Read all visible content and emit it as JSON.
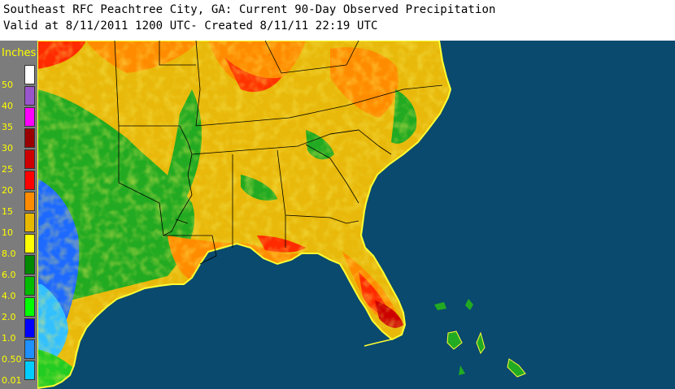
{
  "header": {
    "title": "Southeast RFC Peachtree City, GA: Current 90-Day Observed Precipitation",
    "subtitle": "Valid at 8/11/2011 1200 UTC- Created 8/11/11 22:19 UTC"
  },
  "legend": {
    "unit_label": "Inches",
    "entries": [
      {
        "label": "50",
        "color": "#ffffff"
      },
      {
        "label": "40",
        "color": "#9955cc"
      },
      {
        "label": "35",
        "color": "#ff00ff"
      },
      {
        "label": "30",
        "color": "#990000"
      },
      {
        "label": "25",
        "color": "#cc0000"
      },
      {
        "label": "20",
        "color": "#ff0000"
      },
      {
        "label": "15",
        "color": "#ff8c00"
      },
      {
        "label": "10",
        "color": "#e6b800"
      },
      {
        "label": "8.0",
        "color": "#ffff00"
      },
      {
        "label": "6.0",
        "color": "#008800"
      },
      {
        "label": "4.0",
        "color": "#00bb00"
      },
      {
        "label": "2.0",
        "color": "#00ff00"
      },
      {
        "label": "1.0",
        "color": "#0000ff"
      },
      {
        "label": "0.50",
        "color": "#1e90ff"
      },
      {
        "label": "0.01",
        "color": "#00ccff"
      }
    ]
  },
  "colors": {
    "ocean": "#0a4a6e",
    "land_base": "#e8b80a",
    "background_gray": "#7c7c7c",
    "border": "#000000"
  }
}
